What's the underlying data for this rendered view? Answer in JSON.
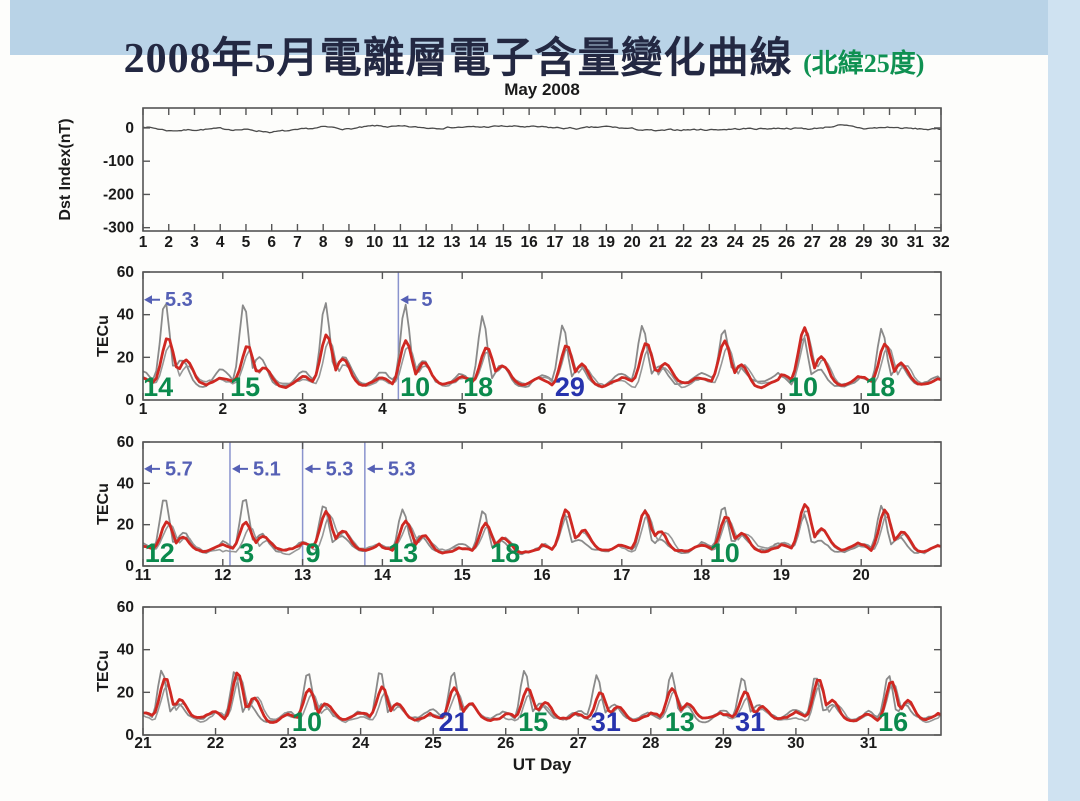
{
  "page": {
    "title": "2008年5月電離層電子含量變化曲線",
    "title_suffix": "(北緯25度)",
    "title_color": "#232842",
    "title_suffix_color": "#0f9152",
    "subtitle": "May 2008",
    "x_axis_label": "UT Day",
    "background": {
      "top_band_color": "#b9d3e7",
      "right_strip_color": "#cfe2f1",
      "page_color": "#fdfdfb"
    },
    "annotation_colors": {
      "day_label_green": "#0b8a4d",
      "day_label_blue": "#2733ad",
      "event_marker_text": "#5560b5",
      "event_marker_line": "#8a93cd"
    }
  },
  "chart_data": [
    {
      "id": "dst",
      "type": "line",
      "title": "May 2008",
      "ylabel": "Dst Index(nT)",
      "ylim": [
        -310,
        60
      ],
      "yticks": [
        0,
        -100,
        -200,
        -300
      ],
      "xlim": [
        1,
        32
      ],
      "xticks": [
        1,
        2,
        3,
        4,
        5,
        6,
        7,
        8,
        9,
        10,
        11,
        12,
        13,
        14,
        15,
        16,
        17,
        18,
        19,
        20,
        21,
        22,
        23,
        24,
        25,
        26,
        27,
        28,
        29,
        30,
        31,
        32
      ],
      "grid": false,
      "series": [
        {
          "name": "Dst index (hourly, quiet ~0 nT)",
          "color": "#4a4a4a",
          "width": 1.3,
          "daily_values": [
            5,
            -8,
            -5,
            -3,
            -5,
            -12,
            -8,
            2,
            -3,
            5,
            3,
            0,
            3,
            2,
            5,
            3,
            0,
            -2,
            3,
            -3,
            -10,
            -5,
            -5,
            -3,
            -2,
            0,
            -3,
            8,
            -2,
            2,
            -3,
            -5
          ]
        }
      ],
      "day_labels": [],
      "event_markers": []
    },
    {
      "id": "tec1",
      "type": "line",
      "ylabel": "TECu",
      "ylim": [
        0,
        60
      ],
      "yticks": [
        0,
        20,
        40,
        60
      ],
      "xlim": [
        1,
        11
      ],
      "xticks": [
        1,
        2,
        3,
        4,
        5,
        6,
        7,
        8,
        9,
        10
      ],
      "grid": false,
      "series": [
        {
          "name": "reference-upper-gray",
          "color": "#8a8a8a",
          "width": 1.8,
          "kind": "gray",
          "peaks": [
            46,
            46,
            46,
            45,
            40,
            35,
            34,
            33,
            30,
            33
          ]
        },
        {
          "name": "reference-lower-gray",
          "color": "#979797",
          "width": 1.6,
          "kind": "gray2",
          "peaks": [
            27,
            23,
            29,
            26,
            23,
            24,
            25,
            26,
            31,
            25
          ]
        },
        {
          "name": "observed-TEC-red",
          "color": "#cf2822",
          "width": 2.8,
          "kind": "red",
          "peaks": [
            29,
            25,
            31,
            28,
            25,
            26,
            27,
            28,
            34,
            27
          ]
        }
      ],
      "day_labels": [
        {
          "day": 1.19,
          "text": "14",
          "color": "#0b8a4d"
        },
        {
          "day": 2.28,
          "text": "15",
          "color": "#0b8a4d"
        },
        {
          "day": 4.41,
          "text": "10",
          "color": "#0b8a4d"
        },
        {
          "day": 5.2,
          "text": "18",
          "color": "#0b8a4d"
        },
        {
          "day": 6.35,
          "text": "29",
          "color": "#2733ad"
        },
        {
          "day": 9.27,
          "text": "10",
          "color": "#0b8a4d"
        },
        {
          "day": 10.24,
          "text": "18",
          "color": "#0b8a4d"
        }
      ],
      "event_markers": [
        {
          "day": 1.0,
          "label": "5.3",
          "vline": false
        },
        {
          "day": 4.2,
          "label": "5",
          "vline": true
        }
      ]
    },
    {
      "id": "tec2",
      "type": "line",
      "ylabel": "TECu",
      "ylim": [
        0,
        60
      ],
      "yticks": [
        0,
        20,
        40,
        60
      ],
      "xlim": [
        11,
        21
      ],
      "xticks": [
        11,
        12,
        13,
        14,
        15,
        16,
        17,
        18,
        19,
        20
      ],
      "grid": false,
      "series": [
        {
          "name": "reference-upper-gray",
          "color": "#8a8a8a",
          "width": 1.8,
          "kind": "gray",
          "peaks": [
            33,
            33,
            30,
            29,
            28,
            24,
            26,
            30,
            25,
            30
          ]
        },
        {
          "name": "reference-lower-gray",
          "color": "#979797",
          "width": 1.6,
          "kind": "gray2",
          "peaks": [
            20,
            20,
            25,
            20,
            19,
            25,
            25,
            22,
            28,
            25
          ]
        },
        {
          "name": "observed-TEC-red",
          "color": "#cf2822",
          "width": 2.8,
          "kind": "red",
          "peaks": [
            22,
            22,
            27,
            22,
            21,
            27,
            27,
            24,
            30,
            27
          ]
        }
      ],
      "day_labels": [
        {
          "day": 11.21,
          "text": "12",
          "color": "#0b8a4d"
        },
        {
          "day": 12.3,
          "text": "3",
          "color": "#0b8a4d"
        },
        {
          "day": 13.13,
          "text": "9",
          "color": "#0b8a4d"
        },
        {
          "day": 14.26,
          "text": "13",
          "color": "#0b8a4d"
        },
        {
          "day": 15.54,
          "text": "18",
          "color": "#0b8a4d"
        },
        {
          "day": 18.29,
          "text": "10",
          "color": "#0b8a4d"
        }
      ],
      "event_markers": [
        {
          "day": 11.0,
          "label": "5.7",
          "vline": false
        },
        {
          "day": 12.09,
          "label": "5.1",
          "vline": true
        },
        {
          "day": 13.0,
          "label": "5.3",
          "vline": true
        },
        {
          "day": 13.78,
          "label": "5.3",
          "vline": true
        }
      ]
    },
    {
      "id": "tec3",
      "type": "line",
      "ylabel": "TECu",
      "ylim": [
        0,
        60
      ],
      "yticks": [
        0,
        20,
        40,
        60
      ],
      "xlim": [
        21,
        32
      ],
      "xticks": [
        21,
        22,
        23,
        24,
        25,
        26,
        27,
        28,
        29,
        30,
        31
      ],
      "grid": false,
      "series": [
        {
          "name": "reference-upper-gray",
          "color": "#8a8a8a",
          "width": 1.8,
          "kind": "gray",
          "peaks": [
            30,
            30,
            30,
            30,
            30,
            30,
            28,
            30,
            28,
            28,
            28
          ]
        },
        {
          "name": "reference-lower-gray",
          "color": "#979797",
          "width": 1.6,
          "kind": "gray2",
          "peaks": [
            24,
            28,
            20,
            21,
            20,
            20,
            18,
            20,
            18,
            24,
            24
          ]
        },
        {
          "name": "observed-TEC-red",
          "color": "#cf2822",
          "width": 2.8,
          "kind": "red",
          "peaks": [
            26,
            30,
            22,
            23,
            22,
            22,
            20,
            22,
            20,
            26,
            26
          ]
        }
      ],
      "day_labels": [
        {
          "day": 23.26,
          "text": "10",
          "color": "#0b8a4d"
        },
        {
          "day": 25.28,
          "text": "21",
          "color": "#2733ad"
        },
        {
          "day": 26.38,
          "text": "15",
          "color": "#0b8a4d"
        },
        {
          "day": 27.38,
          "text": "31",
          "color": "#2733ad"
        },
        {
          "day": 28.4,
          "text": "13",
          "color": "#0b8a4d"
        },
        {
          "day": 29.37,
          "text": "31",
          "color": "#2733ad"
        },
        {
          "day": 31.34,
          "text": "16",
          "color": "#0b8a4d"
        }
      ],
      "event_markers": []
    }
  ]
}
